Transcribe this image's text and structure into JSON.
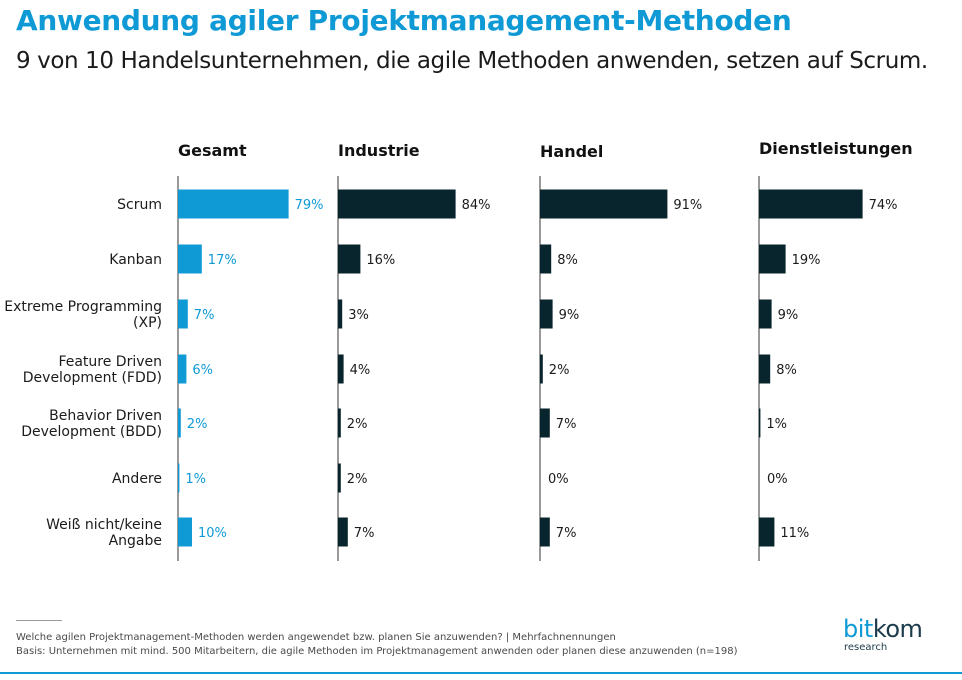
{
  "header": {
    "title": "Anwendung agiler Projektmanagement-Methoden",
    "subtitle": "9 von 10 Handelsunternehmen, die agile Methoden anwenden, setzen auf Scrum."
  },
  "chart_data": {
    "type": "bar",
    "orientation": "horizontal",
    "categories": [
      [
        "Scrum"
      ],
      [
        "Kanban"
      ],
      [
        "Extreme Programming",
        "(XP)"
      ],
      [
        "Feature Driven",
        "Development (FDD)"
      ],
      [
        "Behavior Driven",
        "Development (BDD)"
      ],
      [
        "Andere"
      ],
      [
        "Weiß nicht/keine",
        "Angabe"
      ]
    ],
    "series": [
      {
        "name": "Gesamt",
        "values": [
          79,
          17,
          7,
          6,
          2,
          1,
          10
        ],
        "labels": [
          "79%",
          "17%",
          "7%",
          "6%",
          "2%",
          "1%",
          "10%"
        ],
        "color": "#0f9ad6"
      },
      {
        "name": "Industrie",
        "values": [
          84,
          16,
          3,
          4,
          2,
          2,
          7
        ],
        "labels": [
          "84%",
          "16%",
          "3%",
          "4%",
          "2%",
          "2%",
          "7%"
        ],
        "color": "#08242d"
      },
      {
        "name": "Handel",
        "values": [
          91,
          8,
          9,
          2,
          7,
          0,
          7
        ],
        "labels": [
          "91%",
          "8%",
          "9%",
          "2%",
          "7%",
          "0%",
          "7%"
        ],
        "color": "#08242d"
      },
      {
        "name": "Dienstleistungen",
        "values": [
          74,
          19,
          9,
          8,
          1,
          0,
          11
        ],
        "labels": [
          "74%",
          "19%",
          "9%",
          "8%",
          "1%",
          "0%",
          "11%"
        ],
        "color": "#08242d"
      }
    ],
    "unit": "%",
    "grid": false,
    "legend": "none"
  },
  "footer": {
    "question": "Welche agilen Projektmanagement-Methoden werden angewendet bzw. planen Sie anzuwenden? | Mehrfachnennungen",
    "basis": "Basis: Unternehmen mit mind. 500 Mitarbeitern,  die agile Methoden im Projektmanagement anwenden oder planen diese anzuwenden (n=198)"
  },
  "logo": {
    "main_a": "bit",
    "main_b": "kom",
    "sub": "research"
  },
  "colors": {
    "accent": "#0f9ad6",
    "dark": "#08242d"
  }
}
